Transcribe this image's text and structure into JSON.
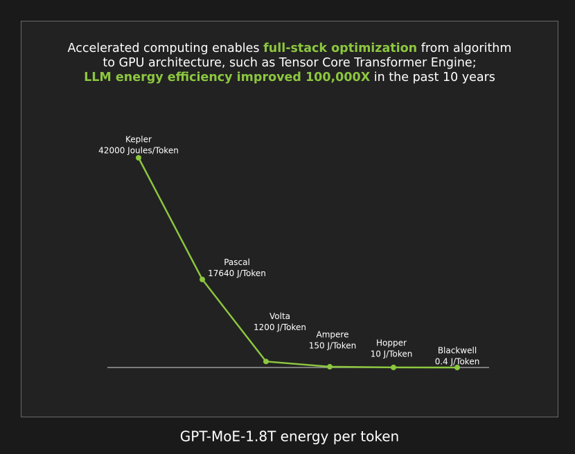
{
  "title_lines": [
    [
      {
        "text": "Accelerated computing enables ",
        "color": "#ffffff",
        "bold": false
      },
      {
        "text": "full-stack optimization",
        "color": "#8cc63f",
        "bold": true
      },
      {
        "text": " from algorithm",
        "color": "#ffffff",
        "bold": false
      }
    ],
    [
      {
        "text": "to GPU architecture, such as Tensor Core Transformer Engine;",
        "color": "#ffffff",
        "bold": false
      }
    ],
    [
      {
        "text": "LLM energy efficiency improved 100,000X",
        "color": "#8cc63f",
        "bold": true
      },
      {
        "text": " in the past 10 years",
        "color": "#ffffff",
        "bold": false
      }
    ]
  ],
  "chart_data": {
    "type": "line",
    "categories": [
      "Kepler",
      "Pascal",
      "Volta",
      "Ampere",
      "Hopper",
      "Blackwell"
    ],
    "series": [
      {
        "color": "#8cc63f",
        "values": [
          42000,
          17640,
          1200,
          150,
          10,
          0.4
        ],
        "value_labels": [
          "42000 Joules/Token",
          "17640 J/Token",
          "1200 J/Token",
          "150 J/Token",
          "10 J/Token",
          "0.4 J/Token"
        ]
      }
    ],
    "ylim": [
      0,
      42000
    ]
  },
  "caption": "GPT-MoE-1.8T energy per token"
}
